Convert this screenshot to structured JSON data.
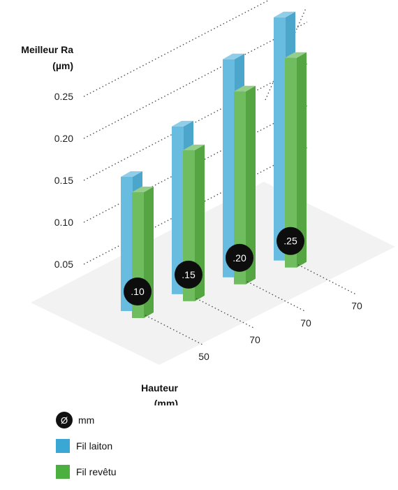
{
  "chart_data": {
    "type": "bar",
    "title": "",
    "ylabel": [
      "Meilleur Ra",
      "(µm)"
    ],
    "xlabel": [
      "Hauteur",
      "(mm)"
    ],
    "ylim": [
      0,
      0.3
    ],
    "yticks": [
      "0.05",
      "0.10",
      "0.15",
      "0.20",
      "0.25"
    ],
    "categories": [
      ".10",
      ".15",
      ".20",
      ".25"
    ],
    "heights": [
      "50",
      "70",
      "70",
      "70"
    ],
    "series": [
      {
        "name": "Fil laiton",
        "values": [
          0.16,
          0.2,
          0.26,
          0.29
        ],
        "color": "#53b3dc"
      },
      {
        "name": "Fil revêtu",
        "values": [
          0.15,
          0.18,
          0.23,
          0.25
        ],
        "color": "#5cb449"
      }
    ],
    "legend_position": "bottom-left"
  },
  "legend": {
    "diameter_symbol": "Ø",
    "diameter_unit": "mm"
  }
}
